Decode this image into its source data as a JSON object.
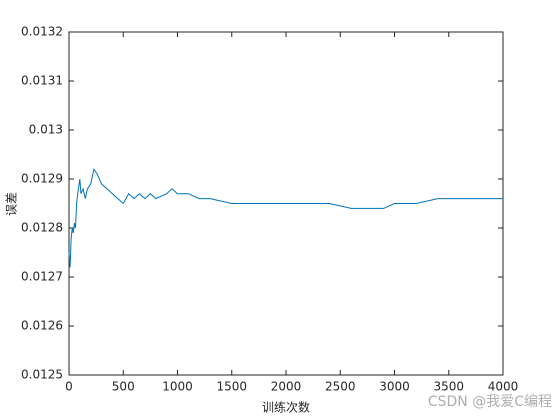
{
  "chart_data": {
    "type": "line",
    "xlabel": "训练次数",
    "ylabel": "误差",
    "x": [
      0,
      10,
      20,
      30,
      40,
      50,
      60,
      70,
      80,
      100,
      110,
      130,
      150,
      170,
      200,
      230,
      260,
      300,
      350,
      400,
      450,
      500,
      550,
      600,
      650,
      700,
      750,
      800,
      900,
      950,
      1000,
      1100,
      1200,
      1300,
      1500,
      1700,
      1900,
      2000,
      2200,
      2400,
      2600,
      2800,
      2900,
      3000,
      3200,
      3400,
      3600,
      3800,
      4000
    ],
    "series": [
      {
        "color": "#0072bd",
        "values": [
          0.01275,
          0.01272,
          0.01278,
          0.0128,
          0.01279,
          0.01281,
          0.0128,
          0.01285,
          0.01287,
          0.0129,
          0.01287,
          0.01288,
          0.01286,
          0.01288,
          0.01289,
          0.01292,
          0.01291,
          0.01289,
          0.01288,
          0.01287,
          0.01286,
          0.01285,
          0.01287,
          0.01286,
          0.01287,
          0.01286,
          0.01287,
          0.01286,
          0.01287,
          0.01288,
          0.01287,
          0.01287,
          0.01286,
          0.01286,
          0.01285,
          0.01285,
          0.01285,
          0.01285,
          0.01285,
          0.01285,
          0.01284,
          0.01284,
          0.01284,
          0.01285,
          0.01285,
          0.01286,
          0.01286,
          0.01286,
          0.01286
        ]
      }
    ],
    "xlim": [
      0,
      4000
    ],
    "xticks": [
      0,
      500,
      1000,
      1500,
      2000,
      2500,
      3000,
      3500,
      4000
    ],
    "ylim": [
      0.0125,
      0.0132
    ],
    "yticks": [
      0.0125,
      0.0126,
      0.0127,
      0.0128,
      0.0129,
      0.013,
      0.0131,
      0.0132
    ],
    "grid": false,
    "watermark": "CSDN @我爱C编程"
  }
}
